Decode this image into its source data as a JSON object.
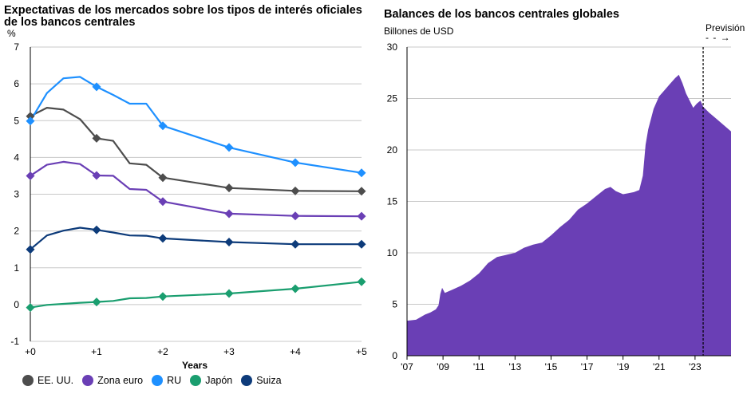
{
  "chart_data": [
    {
      "type": "line",
      "title": "Expectativas de los mercados sobre los tipos de interés oficiales de los bancos centrales",
      "ylabel": "%",
      "xlabel": "Years",
      "ylim": [
        -1,
        7
      ],
      "yticks": [
        -1,
        0,
        1,
        2,
        3,
        4,
        5,
        6,
        7
      ],
      "xlim": [
        0,
        5
      ],
      "xticks": [
        0,
        1,
        2,
        3,
        4,
        5
      ],
      "xtick_labels": [
        "+0",
        "+1",
        "+2",
        "+3",
        "+4",
        "+5"
      ],
      "grid": true,
      "legend_position": "bottom",
      "series": [
        {
          "name": "EE. UU.",
          "color": "#4d4d4d",
          "x": [
            0,
            0.25,
            0.5,
            0.75,
            1,
            1.25,
            1.5,
            1.75,
            2,
            3,
            4,
            5
          ],
          "y": [
            5.12,
            5.35,
            5.3,
            5.04,
            4.52,
            4.45,
            3.84,
            3.8,
            3.45,
            3.17,
            3.09,
            3.08
          ],
          "marker_x": [
            0,
            1,
            2,
            3,
            4,
            5
          ]
        },
        {
          "name": "Zona euro",
          "color": "#6a3fb5",
          "x": [
            0,
            0.25,
            0.5,
            0.75,
            1,
            1.25,
            1.5,
            1.75,
            2,
            3,
            4,
            5
          ],
          "y": [
            3.5,
            3.8,
            3.88,
            3.82,
            3.51,
            3.5,
            3.14,
            3.12,
            2.8,
            2.47,
            2.41,
            2.4
          ],
          "marker_x": [
            0,
            1,
            2,
            3,
            4,
            5
          ]
        },
        {
          "name": "RU",
          "color": "#1e90ff",
          "x": [
            0,
            0.25,
            0.5,
            0.75,
            1,
            1.25,
            1.5,
            1.75,
            2,
            3,
            4,
            5
          ],
          "y": [
            4.99,
            5.75,
            6.15,
            6.19,
            5.92,
            5.7,
            5.46,
            5.46,
            4.86,
            4.27,
            3.86,
            3.58
          ],
          "marker_x": [
            0,
            1,
            2,
            3,
            4,
            5
          ]
        },
        {
          "name": "Japón",
          "color": "#1a9e6f",
          "x": [
            0,
            0.25,
            0.5,
            0.75,
            1,
            1.25,
            1.5,
            1.75,
            2,
            3,
            4,
            5
          ],
          "y": [
            -0.08,
            -0.01,
            0.02,
            0.05,
            0.07,
            0.1,
            0.17,
            0.18,
            0.22,
            0.3,
            0.43,
            0.62
          ],
          "marker_x": [
            0,
            1,
            2,
            3,
            4,
            5
          ]
        },
        {
          "name": "Suiza",
          "color": "#0d3b7a",
          "x": [
            0,
            0.25,
            0.5,
            0.75,
            1,
            1.25,
            1.5,
            1.75,
            2,
            3,
            4,
            5
          ],
          "y": [
            1.5,
            1.88,
            2.01,
            2.09,
            2.03,
            1.96,
            1.88,
            1.87,
            1.8,
            1.7,
            1.64,
            1.64
          ],
          "marker_x": [
            0,
            1,
            2,
            3,
            4,
            5
          ]
        }
      ]
    },
    {
      "type": "area",
      "title": "Balances de los bancos centrales globales",
      "ylabel": "Billones de USD",
      "ylim": [
        0,
        30
      ],
      "yticks": [
        0,
        5,
        10,
        15,
        20,
        25,
        30
      ],
      "xlim": [
        2007,
        2025.0
      ],
      "xticks": [
        2007,
        2009,
        2011,
        2013,
        2015,
        2017,
        2019,
        2021,
        2023
      ],
      "xtick_labels": [
        "'07",
        "'09",
        "'11",
        "'13",
        "'15",
        "'17",
        "'19",
        "'21",
        "'23"
      ],
      "grid": true,
      "forecast_label": "Previsión",
      "forecast_start": 2023.45,
      "color": "#6a3fb5",
      "x": [
        2007.0,
        2007.5,
        2008.0,
        2008.3,
        2008.6,
        2008.75,
        2008.85,
        2008.95,
        2009.1,
        2009.5,
        2010.0,
        2010.5,
        2011.0,
        2011.5,
        2012.0,
        2012.5,
        2013.0,
        2013.5,
        2014.0,
        2014.5,
        2015.0,
        2015.5,
        2016.0,
        2016.5,
        2017.0,
        2017.5,
        2018.0,
        2018.3,
        2018.6,
        2019.0,
        2019.3,
        2019.6,
        2019.9,
        2020.1,
        2020.25,
        2020.4,
        2020.7,
        2021.0,
        2021.3,
        2021.6,
        2021.9,
        2022.1,
        2022.3,
        2022.5,
        2022.7,
        2022.9,
        2023.1,
        2023.3,
        2023.45,
        2023.8,
        2024.2,
        2024.6,
        2025.0
      ],
      "y": [
        3.4,
        3.5,
        4.0,
        4.2,
        4.5,
        4.9,
        6.0,
        6.6,
        6.1,
        6.4,
        6.8,
        7.3,
        8.0,
        9.0,
        9.6,
        9.8,
        10.0,
        10.5,
        10.8,
        11.0,
        11.7,
        12.5,
        13.2,
        14.2,
        14.8,
        15.5,
        16.2,
        16.4,
        16.0,
        15.7,
        15.8,
        15.9,
        16.1,
        17.5,
        20.5,
        22.0,
        24.0,
        25.2,
        25.8,
        26.4,
        27.0,
        27.3,
        26.5,
        25.5,
        24.8,
        24.1,
        24.5,
        24.8,
        24.2,
        23.6,
        23.0,
        22.4,
        21.8
      ]
    }
  ]
}
